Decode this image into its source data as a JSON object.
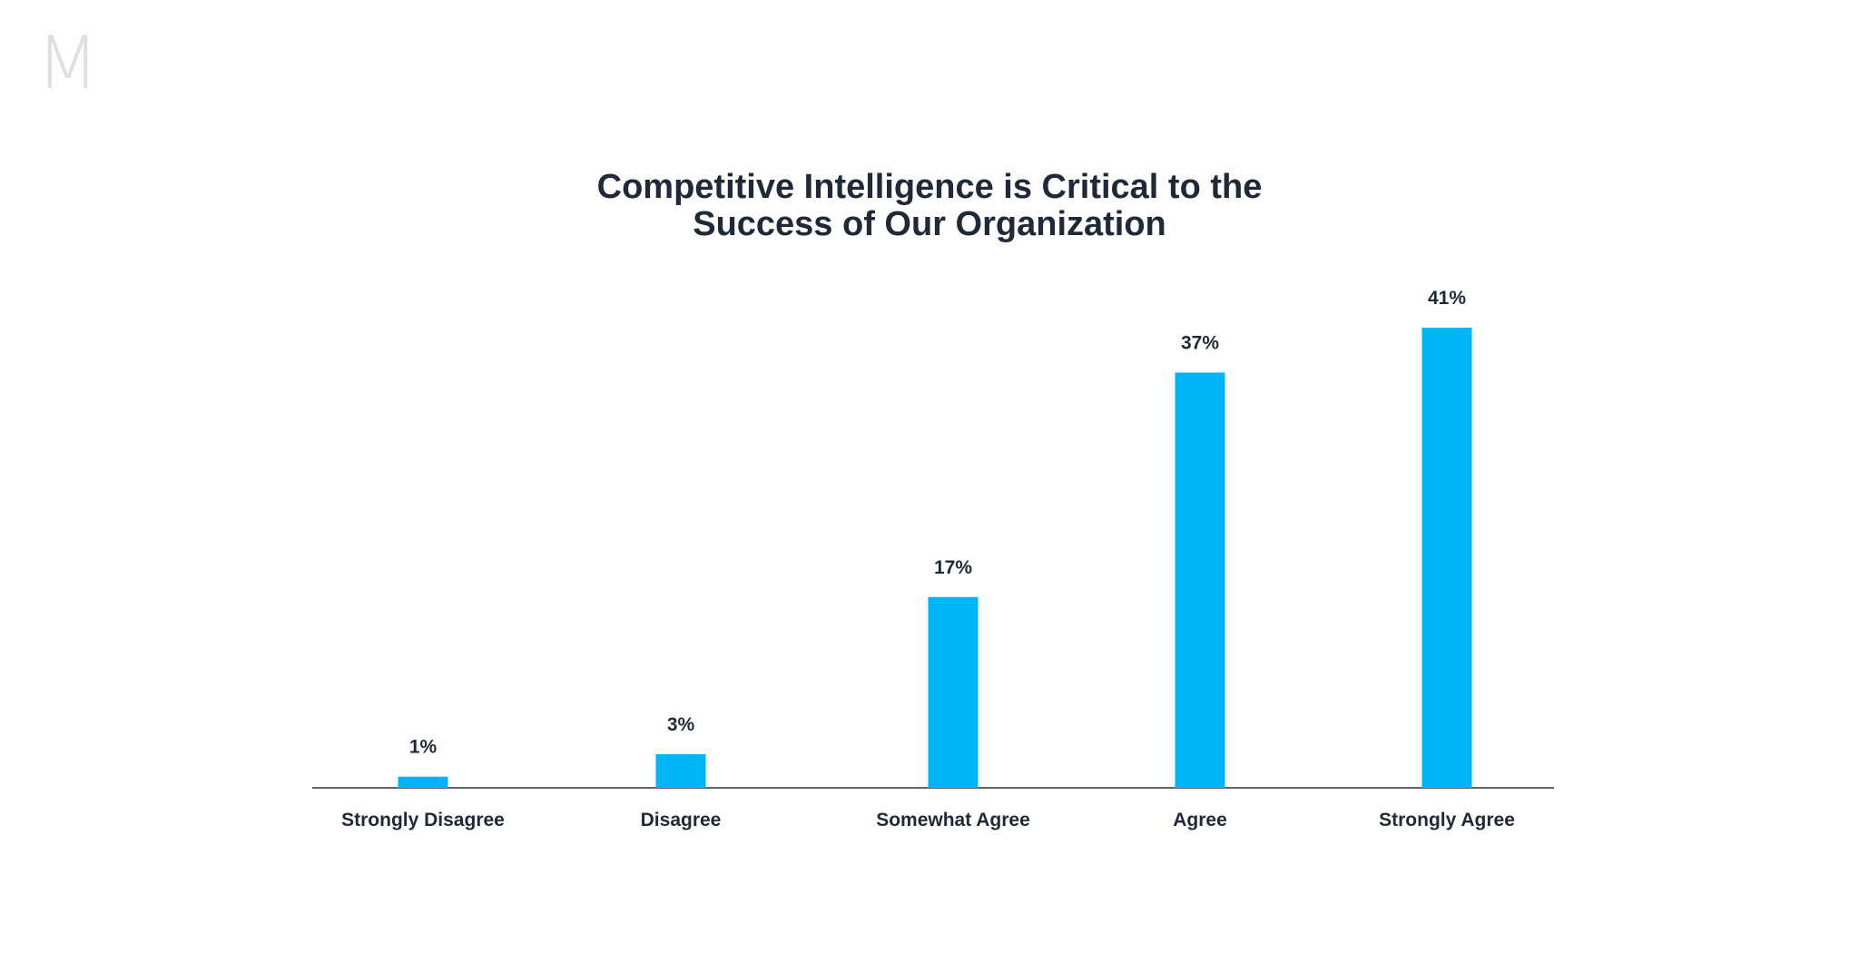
{
  "logo": {
    "text": "M",
    "color": "#e0e0e0"
  },
  "chart_data": {
    "type": "bar",
    "title_lines": [
      "Competitive Intelligence is Critical to the",
      "Success of Our Organization"
    ],
    "categories": [
      "Strongly Disagree",
      "Disagree",
      "Somewhat Agree",
      "Agree",
      "Strongly Agree"
    ],
    "values": [
      1,
      3,
      17,
      37,
      41
    ],
    "value_labels": [
      "1%",
      "3%",
      "17%",
      "37%",
      "41%"
    ],
    "unit": "%",
    "ylim": [
      0,
      41
    ],
    "grid": false,
    "legend": "none",
    "bar_color": "#00b4f8",
    "text_color": "#1f2937"
  }
}
